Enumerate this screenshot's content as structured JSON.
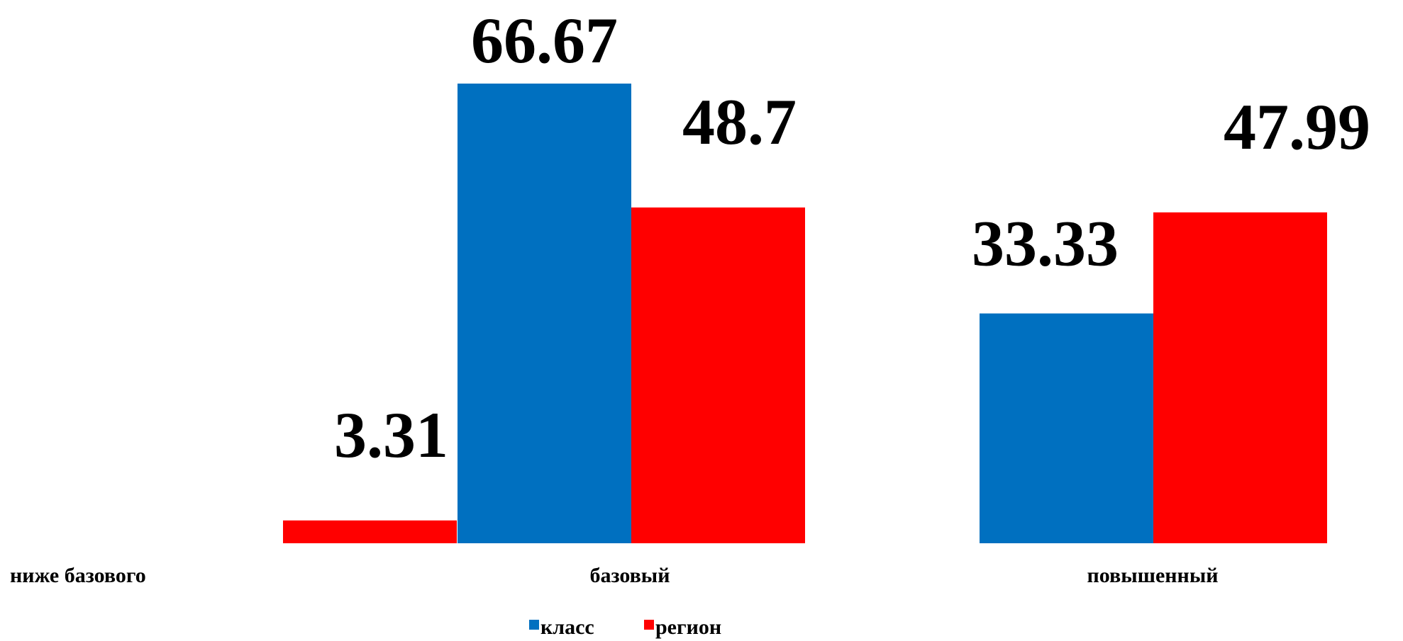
{
  "chart_data": {
    "type": "bar",
    "categories": [
      "ниже базового",
      "базовый",
      "повышенный"
    ],
    "series": [
      {
        "name": "класс",
        "color": "#0070C0",
        "values": [
          0,
          66.67,
          33.33
        ]
      },
      {
        "name": "регион",
        "color": "#FF0000",
        "values": [
          3.31,
          48.7,
          47.99
        ]
      }
    ],
    "data_labels": [
      [
        null,
        "66.67",
        "33.33"
      ],
      [
        "3.31",
        "48.7",
        "47.99"
      ]
    ],
    "title": "",
    "xlabel": "",
    "ylabel": "",
    "ylim": [
      0,
      70
    ],
    "grid": false,
    "legend_position": "bottom"
  }
}
